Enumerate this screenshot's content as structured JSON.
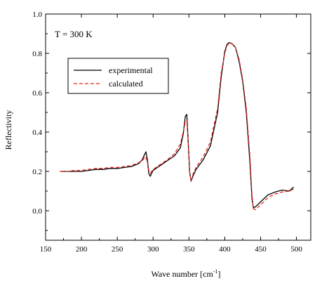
{
  "chart_data": {
    "type": "line",
    "annotation": "T = 300 K",
    "xlabel": "Wave number [cm",
    "xlabel_superscript": "-1",
    "xlabel_suffix": "]",
    "ylabel": "Reflectivity",
    "xlim": [
      150,
      520
    ],
    "ylim": [
      -0.15,
      1.0
    ],
    "xticks": [
      150,
      200,
      250,
      300,
      350,
      400,
      450,
      500
    ],
    "yticks": [
      0.0,
      0.2,
      0.4,
      0.6,
      0.8,
      1.0
    ],
    "xtick_labels": [
      "150",
      "200",
      "250",
      "300",
      "350",
      "400",
      "450",
      "500"
    ],
    "ytick_labels": [
      "0.0",
      "0.2",
      "0.4",
      "0.6",
      "0.8",
      "1.0"
    ],
    "legend_position": "upper-left",
    "series": [
      {
        "name": "experimental",
        "color": "#000000",
        "dash": "solid",
        "x": [
          170,
          180,
          190,
          200,
          210,
          220,
          230,
          240,
          250,
          260,
          270,
          280,
          285,
          288,
          290,
          292,
          294,
          296,
          300,
          310,
          320,
          330,
          338,
          342,
          345,
          347,
          349,
          351,
          353,
          356,
          360,
          370,
          380,
          390,
          395,
          400,
          403,
          406,
          410,
          415,
          420,
          425,
          430,
          435,
          438,
          440,
          443,
          450,
          460,
          470,
          480,
          490,
          496
        ],
        "y": [
          0.2,
          0.2,
          0.2,
          0.2,
          0.205,
          0.21,
          0.21,
          0.215,
          0.215,
          0.22,
          0.225,
          0.24,
          0.26,
          0.285,
          0.3,
          0.26,
          0.19,
          0.175,
          0.205,
          0.23,
          0.255,
          0.28,
          0.32,
          0.39,
          0.48,
          0.49,
          0.35,
          0.2,
          0.15,
          0.18,
          0.21,
          0.26,
          0.33,
          0.5,
          0.68,
          0.81,
          0.845,
          0.855,
          0.85,
          0.83,
          0.76,
          0.66,
          0.5,
          0.25,
          0.06,
          0.015,
          0.02,
          0.045,
          0.08,
          0.095,
          0.105,
          0.1,
          0.12
        ]
      },
      {
        "name": "calculated",
        "color": "#e8231e",
        "dash": "dashed",
        "x": [
          170,
          180,
          190,
          200,
          210,
          220,
          230,
          240,
          250,
          260,
          270,
          280,
          285,
          288,
          290,
          292,
          294,
          296,
          300,
          310,
          320,
          330,
          338,
          342,
          345,
          347,
          349,
          351,
          353,
          356,
          360,
          370,
          380,
          390,
          395,
          400,
          403,
          406,
          410,
          415,
          420,
          425,
          430,
          435,
          438,
          440,
          443,
          450,
          460,
          470,
          480,
          490,
          496
        ],
        "y": [
          0.2,
          0.2,
          0.205,
          0.205,
          0.21,
          0.215,
          0.215,
          0.22,
          0.22,
          0.225,
          0.23,
          0.245,
          0.255,
          0.27,
          0.275,
          0.245,
          0.205,
          0.19,
          0.21,
          0.235,
          0.26,
          0.29,
          0.34,
          0.4,
          0.455,
          0.46,
          0.35,
          0.2,
          0.15,
          0.19,
          0.22,
          0.275,
          0.35,
          0.52,
          0.7,
          0.8,
          0.84,
          0.85,
          0.85,
          0.83,
          0.77,
          0.67,
          0.52,
          0.28,
          0.08,
          0.01,
          0.005,
          0.03,
          0.065,
          0.085,
          0.095,
          0.1,
          0.11
        ]
      }
    ]
  }
}
